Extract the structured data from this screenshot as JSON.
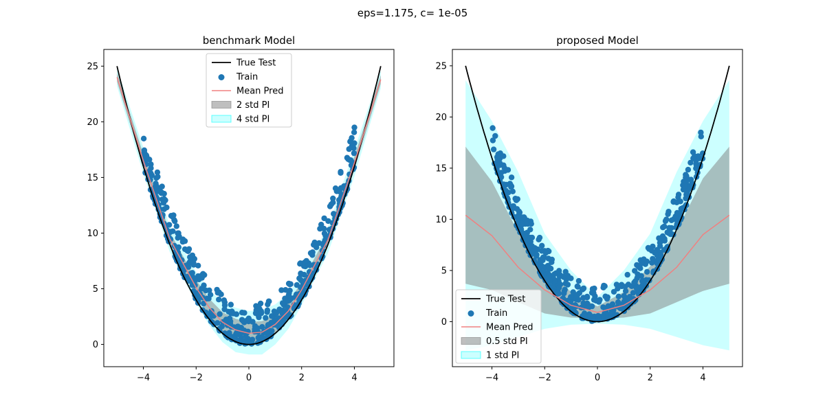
{
  "figure": {
    "suptitle": "eps=1.175, c= 1e-05"
  },
  "colors": {
    "true_test": "#000000",
    "train": "#1f77b4",
    "mean_pred": "#f08080",
    "band_inner": "#808080",
    "band_outer": "#00ffff"
  },
  "chart_data": [
    {
      "type": "line",
      "title": "benchmark Model",
      "xlabel": "",
      "ylabel": "",
      "xlim": [
        -5.5,
        5.5
      ],
      "ylim": [
        -2,
        26.5
      ],
      "xticks": [
        -4,
        -2,
        0,
        2,
        4
      ],
      "yticks": [
        0,
        5,
        10,
        15,
        20,
        25
      ],
      "grid": false,
      "legend_position": "top-center",
      "true_test": {
        "name": "True Test",
        "function": "y = x^2",
        "x_range": [
          -5,
          5
        ]
      },
      "train": {
        "name": "Train",
        "x_range": [
          -4,
          4
        ],
        "y_base": "x^2",
        "noise_range": [
          0,
          3.5
        ]
      },
      "mean_pred": {
        "name": "Mean Pred",
        "x": [
          -5,
          -4,
          -3,
          -2,
          -1.5,
          -1,
          -0.5,
          0,
          0.5,
          1,
          1.5,
          2,
          3,
          4,
          5
        ],
        "y": [
          24,
          16.5,
          9.5,
          5.1,
          3.3,
          2.0,
          1.3,
          1.0,
          1.1,
          1.8,
          3.0,
          4.9,
          9.4,
          16.3,
          23.8
        ]
      },
      "band_inner": {
        "name": "2 std PI",
        "x": [
          -5,
          -4,
          -3,
          -2,
          -1.5,
          -1,
          -0.5,
          0,
          0.5,
          1,
          1.5,
          2,
          3,
          4,
          5
        ],
        "lower": [
          23.6,
          15.9,
          8.9,
          4.4,
          2.5,
          1.1,
          0.3,
          0.0,
          0.1,
          0.9,
          2.2,
          4.2,
          8.8,
          15.7,
          23.4
        ],
        "upper": [
          24.4,
          17.1,
          10.1,
          5.8,
          4.1,
          2.9,
          2.3,
          2.0,
          2.1,
          2.7,
          3.8,
          5.6,
          10.0,
          16.9,
          24.2
        ]
      },
      "band_outer": {
        "name": "4 std PI",
        "x": [
          -5,
          -4,
          -3,
          -2,
          -1.5,
          -1,
          -0.5,
          0,
          0.5,
          1,
          1.5,
          2,
          3,
          4,
          5
        ],
        "lower": [
          23.2,
          15.3,
          8.3,
          3.7,
          1.7,
          0.2,
          -0.7,
          -0.9,
          -0.9,
          0.0,
          1.4,
          3.5,
          8.2,
          15.1,
          23.0
        ],
        "upper": [
          24.8,
          17.7,
          10.7,
          6.5,
          4.9,
          3.8,
          3.3,
          3.0,
          3.1,
          3.6,
          4.6,
          6.3,
          10.6,
          17.5,
          24.6
        ]
      }
    },
    {
      "type": "line",
      "title": "proposed Model",
      "xlabel": "",
      "ylabel": "",
      "xlim": [
        -5.5,
        5.5
      ],
      "ylim": [
        -4.4,
        26.6
      ],
      "xticks": [
        -4,
        -2,
        0,
        2,
        4
      ],
      "yticks": [
        0,
        5,
        10,
        15,
        20,
        25
      ],
      "grid": false,
      "legend_position": "bottom-left",
      "true_test": {
        "name": "True Test",
        "function": "y = x^2",
        "x_range": [
          -5,
          5
        ]
      },
      "train": {
        "name": "Train",
        "x_range": [
          -4,
          4
        ],
        "y_base": "x^2",
        "noise_range": [
          0,
          3.5
        ]
      },
      "mean_pred": {
        "name": "Mean Pred",
        "x": [
          -5,
          -4,
          -3,
          -2,
          -1,
          0,
          1,
          2,
          3,
          4,
          5
        ],
        "y": [
          10.4,
          8.4,
          5.3,
          3.1,
          1.6,
          0.9,
          1.6,
          3.1,
          5.3,
          8.5,
          10.4
        ]
      },
      "band_inner": {
        "name": "0.5 std PI",
        "x": [
          -5,
          -4,
          -3,
          -2,
          -1,
          0,
          1,
          2,
          3,
          4,
          5
        ],
        "lower": [
          3.7,
          3.1,
          1.9,
          0.8,
          0.4,
          0.3,
          0.4,
          0.8,
          1.9,
          3.0,
          3.7
        ],
        "upper": [
          17.1,
          13.7,
          8.7,
          5.4,
          2.9,
          1.5,
          2.9,
          5.4,
          8.8,
          14.0,
          17.1
        ]
      },
      "band_outer": {
        "name": "1 std PI",
        "x": [
          -5,
          -4,
          -3,
          -2,
          -1,
          0,
          1,
          2,
          3,
          4,
          5
        ],
        "lower": [
          -2.8,
          -2.3,
          -1.5,
          -0.7,
          -0.3,
          -0.2,
          -0.3,
          -0.7,
          -1.5,
          -2.3,
          -2.8
        ],
        "upper": [
          23.6,
          19.6,
          14.6,
          8.6,
          5.0,
          2.4,
          5.0,
          8.6,
          14.6,
          19.6,
          23.6
        ]
      }
    }
  ]
}
